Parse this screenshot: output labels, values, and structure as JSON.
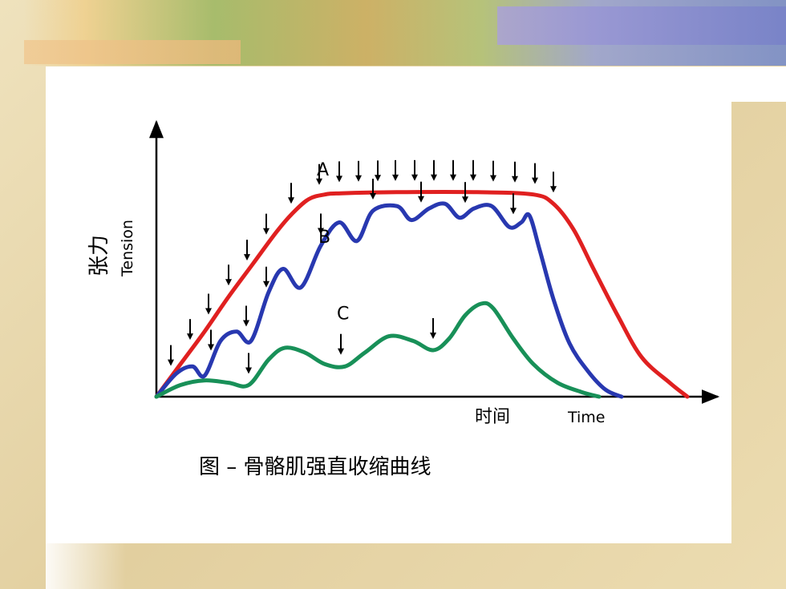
{
  "chart_data": {
    "type": "line",
    "title": "图 – 骨骼肌强直收缩曲线",
    "ylabel_cn": "张力",
    "ylabel_en": "Tension",
    "xlabel_cn": "时间",
    "xlabel_en": "Time",
    "series": [
      {
        "name": "A",
        "color": "#e02020",
        "points": [
          [
            0,
            0
          ],
          [
            30,
            14
          ],
          [
            60,
            28
          ],
          [
            90,
            43
          ],
          [
            120,
            57
          ],
          [
            150,
            71
          ],
          [
            170,
            79
          ],
          [
            190,
            85
          ],
          [
            210,
            87
          ],
          [
            230,
            87.5
          ],
          [
            300,
            88
          ],
          [
            400,
            88
          ],
          [
            470,
            87
          ],
          [
            495,
            83
          ],
          [
            520,
            72
          ],
          [
            545,
            55
          ],
          [
            575,
            35
          ],
          [
            605,
            17
          ],
          [
            640,
            6
          ],
          [
            662,
            0
          ]
        ],
        "stimuli_x": [
          18,
          42,
          65,
          90,
          113,
          137,
          168,
          203,
          228,
          252,
          276,
          298,
          322,
          346,
          370,
          395,
          420,
          447,
          472,
          495
        ]
      },
      {
        "name": "B",
        "color": "#2838b0",
        "points": [
          [
            0,
            0
          ],
          [
            25,
            10
          ],
          [
            45,
            13
          ],
          [
            60,
            9
          ],
          [
            80,
            24
          ],
          [
            100,
            28
          ],
          [
            118,
            24
          ],
          [
            140,
            45
          ],
          [
            158,
            55
          ],
          [
            180,
            47
          ],
          [
            205,
            65
          ],
          [
            228,
            75
          ],
          [
            250,
            67
          ],
          [
            270,
            80
          ],
          [
            300,
            82
          ],
          [
            318,
            76
          ],
          [
            340,
            81
          ],
          [
            360,
            83
          ],
          [
            378,
            77
          ],
          [
            396,
            81
          ],
          [
            418,
            82
          ],
          [
            440,
            73
          ],
          [
            455,
            75
          ],
          [
            465,
            78
          ],
          [
            478,
            63
          ],
          [
            495,
            42
          ],
          [
            515,
            23
          ],
          [
            538,
            11
          ],
          [
            560,
            3
          ],
          [
            580,
            0
          ]
        ],
        "stimuli_x": [
          68,
          112,
          137,
          205,
          270,
          330,
          385,
          445
        ]
      },
      {
        "name": "C",
        "color": "#189058",
        "points": [
          [
            0,
            0
          ],
          [
            30,
            5
          ],
          [
            60,
            7
          ],
          [
            90,
            6
          ],
          [
            115,
            5
          ],
          [
            140,
            16
          ],
          [
            160,
            21
          ],
          [
            185,
            19
          ],
          [
            210,
            14
          ],
          [
            235,
            13
          ],
          [
            260,
            19
          ],
          [
            290,
            26
          ],
          [
            320,
            24
          ],
          [
            345,
            20
          ],
          [
            365,
            25
          ],
          [
            385,
            35
          ],
          [
            405,
            40
          ],
          [
            420,
            38
          ],
          [
            445,
            25
          ],
          [
            470,
            14
          ],
          [
            500,
            6
          ],
          [
            530,
            2
          ],
          [
            552,
            0
          ]
        ],
        "stimuli_x": [
          115,
          230,
          345
        ]
      }
    ],
    "xlim": [
      0,
      700
    ],
    "ylim": [
      0,
      100
    ]
  }
}
